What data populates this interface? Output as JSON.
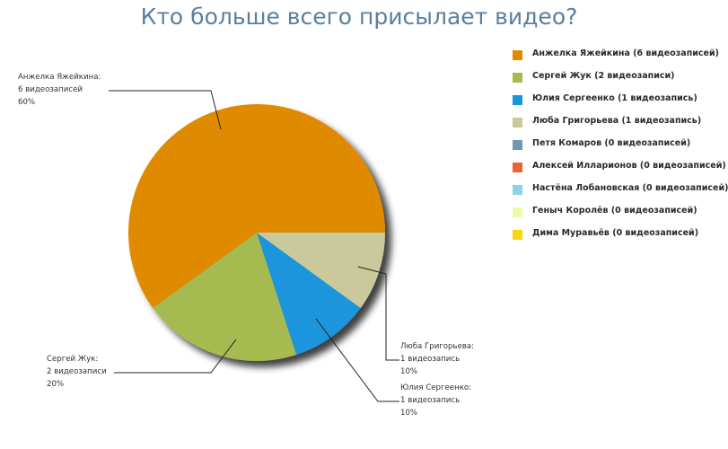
{
  "title": "Кто больше всего присылает видео?",
  "chart_data": {
    "type": "pie",
    "title": "Кто больше всего присылает видео?",
    "slices": [
      {
        "name": "Анжелка Яжейкина",
        "value": 6,
        "percent": 60,
        "color": "#e08a00",
        "label_lines": [
          "Анжелка Яжейкина:",
          "6 видеозаписей",
          "60%"
        ]
      },
      {
        "name": "Сергей Жук",
        "value": 2,
        "percent": 20,
        "color": "#a6bb4f",
        "label_lines": [
          "Сергей Жук:",
          "2 видеозаписи",
          "20%"
        ]
      },
      {
        "name": "Юлия Сергеенко",
        "value": 1,
        "percent": 10,
        "color": "#1b95dc",
        "label_lines": [
          "Юлия Сергеенко:",
          "1 видеозапись",
          "10%"
        ]
      },
      {
        "name": "Люба Григорьева",
        "value": 1,
        "percent": 10,
        "color": "#c9c99b",
        "label_lines": [
          "Люба Григорьева:",
          "1 видеозапись",
          "10%"
        ]
      }
    ],
    "legend": {
      "placement": "right",
      "items": [
        {
          "label": "Анжелка Яжейкина (6 видеозаписей)",
          "color": "#e08a00"
        },
        {
          "label": "Сергей Жук (2 видеозаписи)",
          "color": "#a6bb4f"
        },
        {
          "label": "Юлия Сергеенко (1 видеозапись)",
          "color": "#1b95dc"
        },
        {
          "label": "Люба Григорьева (1 видеозапись)",
          "color": "#c9c99b"
        },
        {
          "label": "Петя Комаров (0 видеозаписей)",
          "color": "#6f97ae"
        },
        {
          "label": "Алексей Илларионов (0 видеозаписей)",
          "color": "#e8643a"
        },
        {
          "label": "Настёна Лобановская (0 видеозаписей)",
          "color": "#8dd3e6"
        },
        {
          "label": "Геныч Королёв (0 видеозаписей)",
          "color": "#eefaa8"
        },
        {
          "label": "Дима Муравьёв (0 видеозаписей)",
          "color": "#f6d611"
        }
      ]
    }
  }
}
